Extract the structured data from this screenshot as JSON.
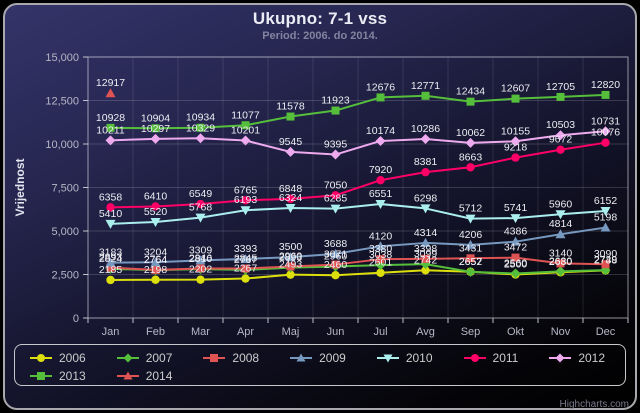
{
  "title": "Ukupno: 7-1 vss",
  "subtitle": "Period: 2006. do 2014.",
  "credits": "Highcharts.com",
  "chart_data": {
    "type": "line",
    "title": "Ukupno: 7-1 vss",
    "subtitle": "Period: 2006. do 2014.",
    "xlabel": "",
    "ylabel": "Vrijednost",
    "ylim": [
      0,
      15000
    ],
    "ytick_interval": 2500,
    "ytick_labels": [
      "0",
      "2,500",
      "5,000",
      "7,500",
      "10,000",
      "12,500",
      "15,000"
    ],
    "grid": true,
    "legend_position": "bottom",
    "categories": [
      "Jan",
      "Feb",
      "Mar",
      "Apr",
      "Maj",
      "Jun",
      "Jul",
      "Avg",
      "Sep",
      "Okt",
      "Nov",
      "Dec"
    ],
    "series": [
      {
        "name": "2006",
        "color": "#DDDF0D",
        "marker": "circle",
        "values": [
          2185,
          2198,
          2202,
          2267,
          2493,
          2460,
          2601,
          2742,
          2657,
          2500,
          2630,
          2738
        ]
      },
      {
        "name": "2007",
        "color": "#55BF3B",
        "marker": "diamond",
        "values": [
          2824,
          2754,
          2810,
          2767,
          2893,
          2960,
          3038,
          3099,
          2652,
          2560,
          2680,
          2749
        ]
      },
      {
        "name": "2008",
        "color": "#DF5353",
        "marker": "square",
        "values": [
          2893,
          2764,
          2846,
          2845,
          2960,
          3071,
          3380,
          3398,
          3431,
          3472,
          3140,
          3090
        ]
      },
      {
        "name": "2009",
        "color": "#7798BF",
        "marker": "triangle",
        "values": [
          3183,
          3204,
          3309,
          3393,
          3500,
          3688,
          4120,
          4314,
          4206,
          4386,
          4814,
          5198
        ]
      },
      {
        "name": "2010",
        "color": "#AAEEEE",
        "marker": "triangle-down",
        "values": [
          5410,
          5520,
          5768,
          6193,
          6324,
          6285,
          6551,
          6298,
          5712,
          5741,
          5960,
          6152
        ]
      },
      {
        "name": "2011",
        "color": "#FF0066",
        "marker": "circle",
        "values": [
          6358,
          6410,
          6549,
          6765,
          6848,
          7050,
          7920,
          8381,
          8663,
          9218,
          9672,
          10076
        ]
      },
      {
        "name": "2012",
        "color": "#EEAAEE",
        "marker": "diamond",
        "values": [
          10211,
          10297,
          10329,
          10201,
          9545,
          9395,
          10174,
          10286,
          10062,
          10155,
          10503,
          10731
        ]
      },
      {
        "name": "2013",
        "color": "#55BF3B",
        "marker": "square",
        "values": [
          10928,
          10904,
          10934,
          11077,
          11578,
          11923,
          12676,
          12771,
          12434,
          12607,
          12705,
          12820
        ]
      },
      {
        "name": "2014",
        "color": "#DF5353",
        "marker": "triangle",
        "values": [
          12917,
          null,
          null,
          null,
          null,
          null,
          null,
          null,
          null,
          null,
          null,
          null
        ]
      }
    ]
  }
}
